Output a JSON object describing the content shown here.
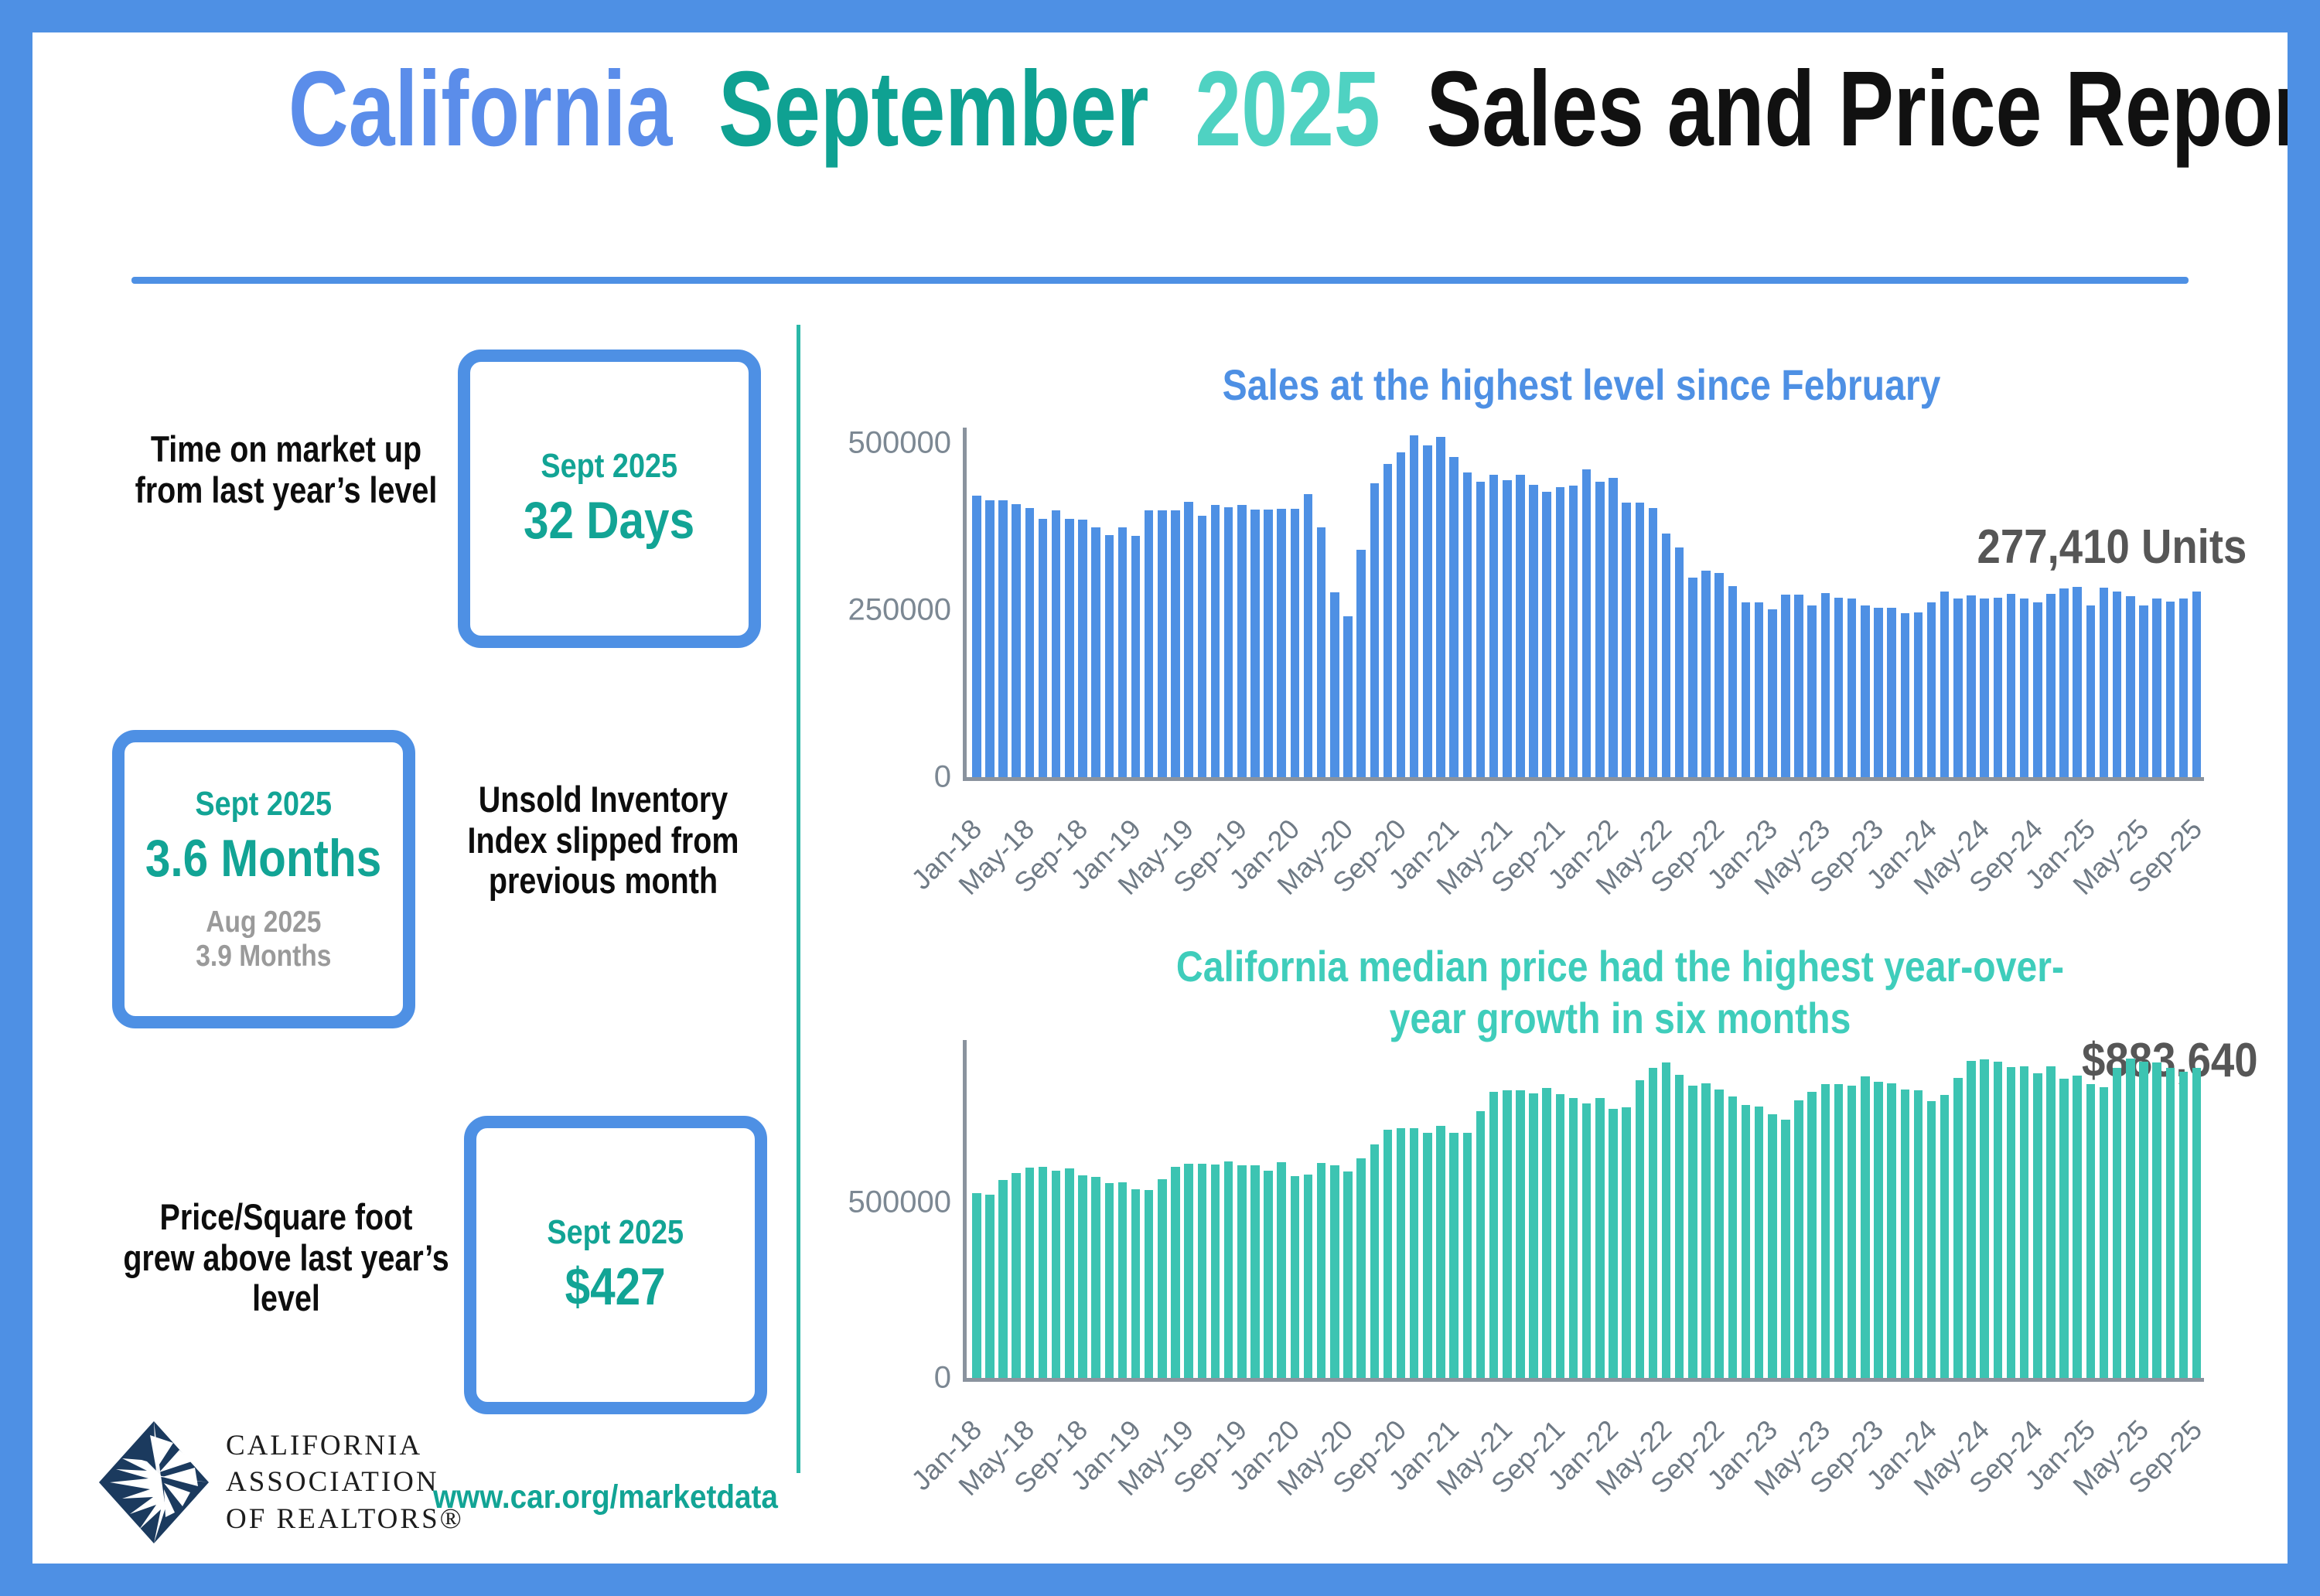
{
  "title": {
    "part1": "California",
    "part2": "September",
    "part3": "2025",
    "part4": "Sales and Price Report"
  },
  "stats": [
    {
      "label": "Time on market up from last year’s level",
      "box_period": "Sept 2025",
      "box_value": "32 Days"
    },
    {
      "label": "Unsold Inventory Index slipped from previous month",
      "box_period": "Sept 2025",
      "box_value": "3.6 Months",
      "box_prev_period": "Aug 2025",
      "box_prev_value": "3.9 Months"
    },
    {
      "label": "Price/Square foot grew above last year’s level",
      "box_period": "Sept 2025",
      "box_value": "$427"
    }
  ],
  "footer": {
    "logo_line1": "CALIFORNIA",
    "logo_line2": "ASSOCIATION",
    "logo_line3": "OF REALTORS®",
    "website": "www.car.org/marketdata"
  },
  "colors": {
    "blue": "#4e90e4",
    "title_blue": "#5b8dea",
    "teal_dark": "#0fa192",
    "teal_light": "#4fd2c2",
    "teal_bars": "#3cc4b2",
    "annotation_gray": "#565656",
    "axis_gray": "#8a939e",
    "logo_navy": "#1b3a5e"
  },
  "chart_data": [
    {
      "type": "bar",
      "title": "Sales at the highest level since February",
      "annotation": "277,410 Units",
      "bar_color": "#4e90e4",
      "ylim": [
        0,
        550000
      ],
      "yticks": [
        {
          "label": "500000",
          "value": 500000
        },
        {
          "label": "250000",
          "value": 250000
        },
        {
          "label": "0",
          "value": 0
        }
      ],
      "tick_every": 4,
      "tick_labels": [
        "Jan-18",
        "May-18",
        "Sep-18",
        "Jan-19",
        "May-19",
        "Sep-19",
        "Jan-20",
        "May-20",
        "Sep-20",
        "Jan-21",
        "May-21",
        "Sep-21",
        "Jan-22",
        "May-22",
        "Sep-22",
        "Jan-23",
        "May-23",
        "Sep-23",
        "Jan-24",
        "May-24",
        "Sep-24",
        "Jan-25",
        "May-25",
        "Sep-25"
      ],
      "categories": [
        "Jan-18",
        "Feb-18",
        "Mar-18",
        "Apr-18",
        "May-18",
        "Jun-18",
        "Jul-18",
        "Aug-18",
        "Sep-18",
        "Oct-18",
        "Nov-18",
        "Dec-18",
        "Jan-19",
        "Feb-19",
        "Mar-19",
        "Apr-19",
        "May-19",
        "Jun-19",
        "Jul-19",
        "Aug-19",
        "Sep-19",
        "Oct-19",
        "Nov-19",
        "Dec-19",
        "Jan-20",
        "Feb-20",
        "Mar-20",
        "Apr-20",
        "May-20",
        "Jun-20",
        "Jul-20",
        "Aug-20",
        "Sep-20",
        "Oct-20",
        "Nov-20",
        "Dec-20",
        "Jan-21",
        "Feb-21",
        "Mar-21",
        "Apr-21",
        "May-21",
        "Jun-21",
        "Jul-21",
        "Aug-21",
        "Sep-21",
        "Oct-21",
        "Nov-21",
        "Dec-21",
        "Jan-22",
        "Feb-22",
        "Mar-22",
        "Apr-22",
        "May-22",
        "Jun-22",
        "Jul-22",
        "Aug-22",
        "Sep-22",
        "Oct-22",
        "Nov-22",
        "Dec-22",
        "Jan-23",
        "Feb-23",
        "Mar-23",
        "Apr-23",
        "May-23",
        "Jun-23",
        "Jul-23",
        "Aug-23",
        "Sep-23",
        "Oct-23",
        "Nov-23",
        "Dec-23",
        "Jan-24",
        "Feb-24",
        "Mar-24",
        "Apr-24",
        "May-24",
        "Jun-24",
        "Jul-24",
        "Aug-24",
        "Sep-24",
        "Oct-24",
        "Nov-24",
        "Dec-24",
        "Jan-25",
        "Feb-25",
        "Mar-25",
        "Apr-25",
        "May-25",
        "Jun-25",
        "Jul-25",
        "Aug-25",
        "Sep-25"
      ],
      "values": [
        421000,
        414000,
        414000,
        409000,
        403000,
        386000,
        399000,
        386000,
        385000,
        374000,
        362000,
        374000,
        361000,
        399000,
        399000,
        399000,
        412000,
        391000,
        407000,
        404000,
        407000,
        400000,
        400000,
        402000,
        402000,
        424000,
        374000,
        277000,
        241000,
        340000,
        440000,
        469000,
        486000,
        511000,
        496000,
        509000,
        479000,
        456000,
        442000,
        452000,
        444000,
        452000,
        438000,
        427000,
        434000,
        436000,
        461000,
        442000,
        448000,
        411000,
        411000,
        403000,
        365000,
        344000,
        299000,
        309000,
        305000,
        286000,
        261000,
        261000,
        251000,
        273000,
        273000,
        257000,
        275000,
        269000,
        267000,
        257000,
        254000,
        254000,
        245000,
        247000,
        261000,
        278000,
        267000,
        272000,
        267000,
        268000,
        274000,
        267000,
        261000,
        274000,
        282000,
        285000,
        257000,
        284000,
        278000,
        271000,
        257000,
        267000,
        263000,
        267000,
        277410
      ]
    },
    {
      "type": "bar",
      "title": "California median price had the highest year-over-year growth in six months",
      "title_line1": "California median price had the highest year-over-",
      "title_line2": "year growth in six months",
      "annotation": "$883,640",
      "bar_color": "#3cc4b2",
      "ylim": [
        0,
        960000
      ],
      "yticks": [
        {
          "label": "500000",
          "value": 500000
        },
        {
          "label": "0",
          "value": 0
        }
      ],
      "tick_every": 4,
      "tick_labels": [
        "Jan-18",
        "May-18",
        "Sep-18",
        "Jan-19",
        "May-19",
        "Sep-19",
        "Jan-20",
        "May-20",
        "Sep-20",
        "Jan-21",
        "May-21",
        "Sep-21",
        "Jan-22",
        "May-22",
        "Sep-22",
        "Jan-23",
        "May-23",
        "Sep-23",
        "Jan-24",
        "May-24",
        "Sep-24",
        "Jan-25",
        "May-25",
        "Sep-25"
      ],
      "categories": [
        "Jan-18",
        "Feb-18",
        "Mar-18",
        "Apr-18",
        "May-18",
        "Jun-18",
        "Jul-18",
        "Aug-18",
        "Sep-18",
        "Oct-18",
        "Nov-18",
        "Dec-18",
        "Jan-19",
        "Feb-19",
        "Mar-19",
        "Apr-19",
        "May-19",
        "Jun-19",
        "Jul-19",
        "Aug-19",
        "Sep-19",
        "Oct-19",
        "Nov-19",
        "Dec-19",
        "Jan-20",
        "Feb-20",
        "Mar-20",
        "Apr-20",
        "May-20",
        "Jun-20",
        "Jul-20",
        "Aug-20",
        "Sep-20",
        "Oct-20",
        "Nov-20",
        "Dec-20",
        "Jan-21",
        "Feb-21",
        "Mar-21",
        "Apr-21",
        "May-21",
        "Jun-21",
        "Jul-21",
        "Aug-21",
        "Sep-21",
        "Oct-21",
        "Nov-21",
        "Dec-21",
        "Jan-22",
        "Feb-22",
        "Mar-22",
        "Apr-22",
        "May-22",
        "Jun-22",
        "Jul-22",
        "Aug-22",
        "Sep-22",
        "Oct-22",
        "Nov-22",
        "Dec-22",
        "Jan-23",
        "Feb-23",
        "Mar-23",
        "Apr-23",
        "May-23",
        "Jun-23",
        "Jul-23",
        "Aug-23",
        "Sep-23",
        "Oct-23",
        "Nov-23",
        "Dec-23",
        "Jan-24",
        "Feb-24",
        "Mar-24",
        "Apr-24",
        "May-24",
        "Jun-24",
        "Jul-24",
        "Aug-24",
        "Sep-24",
        "Oct-24",
        "Nov-24",
        "Dec-24",
        "Jan-25",
        "Feb-25",
        "Mar-25",
        "Apr-25",
        "May-25",
        "Jun-25",
        "Jul-25",
        "Aug-25",
        "Sep-25"
      ],
      "values": [
        527000,
        522000,
        564000,
        584000,
        600000,
        602000,
        591000,
        596000,
        578000,
        572000,
        554000,
        558000,
        538000,
        535000,
        565000,
        602000,
        611000,
        611000,
        607000,
        617000,
        605000,
        605000,
        590000,
        615000,
        575000,
        579000,
        612000,
        606000,
        588000,
        626000,
        666000,
        707000,
        712000,
        711000,
        699000,
        717000,
        699000,
        699000,
        759000,
        814000,
        819000,
        819000,
        811000,
        827000,
        809000,
        798000,
        782000,
        797000,
        766000,
        771000,
        849000,
        884000,
        898000,
        864000,
        833000,
        839000,
        822000,
        801000,
        777000,
        774000,
        751000,
        735000,
        791000,
        815000,
        836000,
        838000,
        832000,
        859000,
        843000,
        840000,
        822000,
        819000,
        788000,
        806000,
        854000,
        904000,
        908000,
        900000,
        886000,
        888000,
        868000,
        888000,
        852000,
        861000,
        838000,
        829000,
        884000,
        910000,
        900000,
        899000,
        884000,
        873000,
        883640
      ]
    }
  ]
}
